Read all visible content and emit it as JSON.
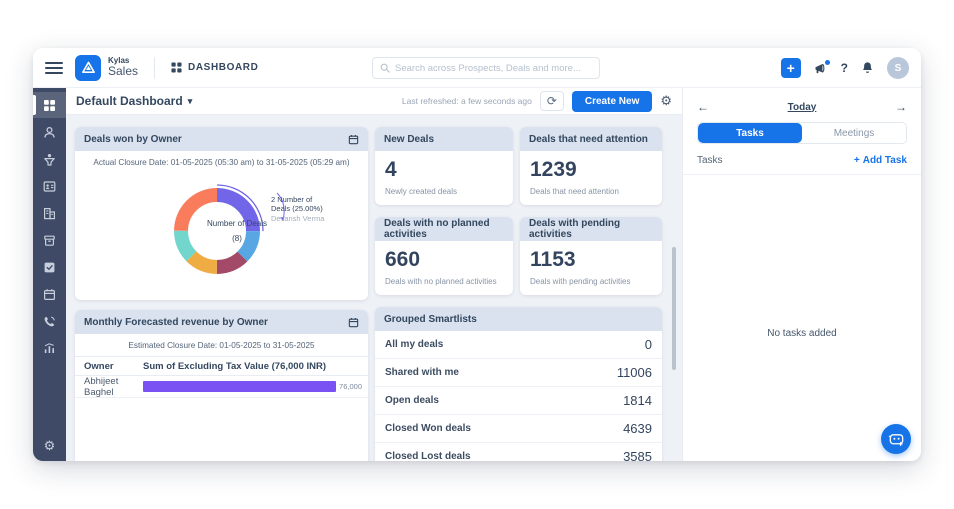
{
  "topbar": {
    "brand_small": "Kylas",
    "brand_big": "Sales",
    "nav_dashboard": "DASHBOARD",
    "search_placeholder": "Search across Prospects, Deals and more...",
    "avatar_initial": "S"
  },
  "icons": {
    "plus": "+",
    "question": "?",
    "refresh": "⟳",
    "gear": "⚙",
    "chevron_down": "▾",
    "arrow_left": "←",
    "arrow_right": "→",
    "add": "+"
  },
  "sidebar": {
    "items": [
      "dashboard",
      "leads",
      "deals",
      "contacts",
      "companies",
      "products",
      "tasks",
      "meetings",
      "calls",
      "reports"
    ],
    "footer": "settings"
  },
  "subheader": {
    "title": "Default Dashboard",
    "last_refreshed": "Last refreshed: a few seconds ago",
    "create_new": "Create New"
  },
  "widgets": {
    "deals_won": {
      "title": "Deals won by Owner",
      "subtitle": "Actual Closure Date: 01-05-2025 (05:30 am) to 31-05-2025 (05:29 am)",
      "center_label": "Number of Deals",
      "center_value": "(8)",
      "callout_value": "2 Number of Deals (25.00%)",
      "callout_owner": "Devansh Verma"
    },
    "kpi": [
      {
        "title": "New Deals",
        "value": "4",
        "caption": "Newly created deals"
      },
      {
        "title": "Deals that need attention",
        "value": "1239",
        "caption": "Deals that need attention"
      },
      {
        "title": "Deals with no planned activities",
        "value": "660",
        "caption": "Deals with no planned activities"
      },
      {
        "title": "Deals with pending activities",
        "value": "1153",
        "caption": "Deals with pending activities"
      }
    ],
    "smartlists": {
      "title": "Grouped Smartlists",
      "rows": [
        {
          "label": "All my deals",
          "value": "0"
        },
        {
          "label": "Shared with me",
          "value": "11006"
        },
        {
          "label": "Open deals",
          "value": "1814"
        },
        {
          "label": "Closed Won deals",
          "value": "4639"
        },
        {
          "label": "Closed Lost deals",
          "value": "3585"
        }
      ]
    },
    "forecast": {
      "title": "Monthly Forecasted revenue by Owner",
      "subtitle": "Estimated Closure Date: 01-05-2025 to 31-05-2025",
      "col_owner": "Owner",
      "col_value": "Sum of Excluding Tax Value (76,000 INR)",
      "owner": "Abhijeet Baghel",
      "bar_label": "76,000"
    }
  },
  "right_panel": {
    "date_label": "Today",
    "tab_tasks": "Tasks",
    "tab_meetings": "Meetings",
    "section_title": "Tasks",
    "add_task": "Add Task",
    "empty": "No tasks added"
  },
  "chart_data": [
    {
      "type": "pie",
      "title": "Deals won by Owner",
      "subtitle": "Actual Closure Date: 01-05-2025 (05:30 am) to 31-05-2025 (05:29 am)",
      "center_label": "Number of Deals",
      "center_total": 8,
      "legend_position": "none",
      "slices": [
        {
          "owner": "Devansh Verma",
          "deals": 2,
          "pct": 25.0,
          "color": "#7166e8",
          "selected": true
        },
        {
          "deals": 1,
          "pct": 12.5,
          "color": "#58a7e2"
        },
        {
          "deals": 1,
          "pct": 12.5,
          "color": "#a34a68"
        },
        {
          "deals": 1,
          "pct": 12.5,
          "color": "#eeac42"
        },
        {
          "deals": 1,
          "pct": 12.5,
          "color": "#72d6cd"
        },
        {
          "deals": 2,
          "pct": 25.0,
          "color": "#f97c5d"
        }
      ]
    },
    {
      "type": "bar",
      "title": "Monthly Forecasted revenue by Owner",
      "subtitle": "Estimated Closure Date: 01-05-2025 to 31-05-2025",
      "orientation": "horizontal",
      "categories": [
        "Abhijeet Baghel"
      ],
      "values": [
        76000
      ],
      "value_labels": [
        "76,000"
      ],
      "xlabel": "Sum of Excluding Tax Value (76,000 INR)",
      "xlim": [
        0,
        76000
      ],
      "bar_color": "#7a52f4"
    }
  ],
  "colors": {
    "accent_blue": "#1774e8",
    "sidebar_bg": "#3f4b66",
    "card_header_bg": "#d9e2ee",
    "main_bg": "#eef1f6",
    "text_dark": "#33475f",
    "text_muted": "#8794a5",
    "bar_purple": "#7a52f4"
  }
}
